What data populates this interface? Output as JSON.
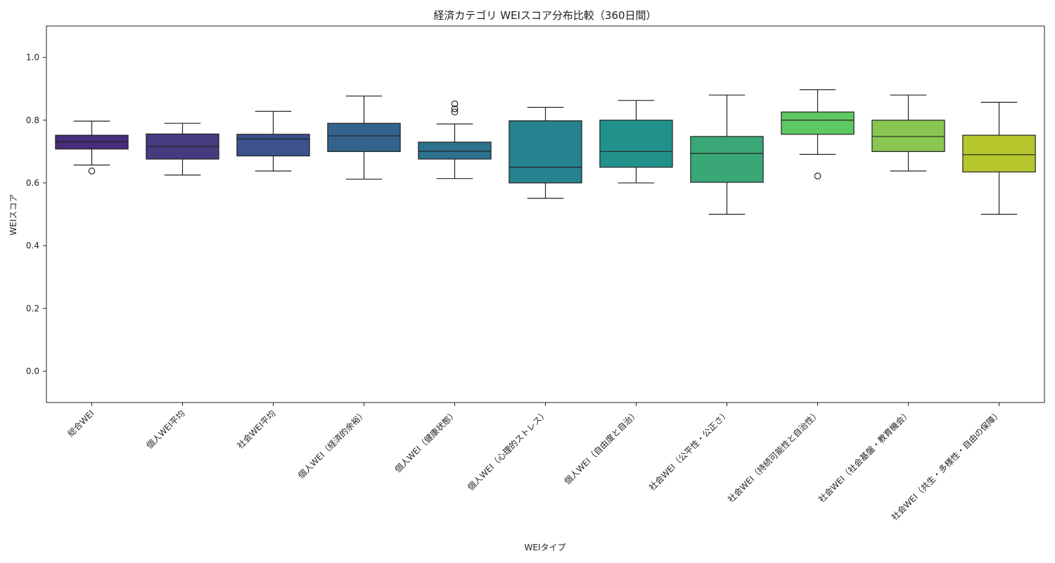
{
  "chart_data": {
    "type": "box",
    "title": "経済カテゴリ WEIスコア分布比較（360日間）",
    "xlabel": "WEIタイプ",
    "ylabel": "WEIスコア",
    "ylim": [
      -0.1,
      1.1
    ],
    "yticks": [
      0.0,
      0.2,
      0.4,
      0.6,
      0.8,
      1.0
    ],
    "ytick_labels": [
      "0.0",
      "0.2",
      "0.4",
      "0.6",
      "0.8",
      "1.0"
    ],
    "grid": false,
    "categories": [
      "総合WEI",
      "個人WEI平均",
      "社会WEI平均",
      "個人WEI（経済的余裕）",
      "個人WEI（健康状態）",
      "個人WEI（心理的ストレス）",
      "個人WEI（自由度と自治）",
      "社会WEI（公平性・公正さ）",
      "社会WEI（持続可能性と自治性）",
      "社会WEI（社会基盤・教育機会）",
      "社会WEI（共生・多様性・自由の保障）"
    ],
    "boxes": [
      {
        "whisker_low": 0.657,
        "q1": 0.708,
        "median": 0.731,
        "q3": 0.752,
        "whisker_high": 0.797,
        "outliers": [
          0.638
        ],
        "color": "#472d7b"
      },
      {
        "whisker_low": 0.625,
        "q1": 0.676,
        "median": 0.716,
        "q3": 0.756,
        "whisker_high": 0.79,
        "outliers": [],
        "color": "#463b7e"
      },
      {
        "whisker_low": 0.638,
        "q1": 0.686,
        "median": 0.74,
        "q3": 0.755,
        "whisker_high": 0.828,
        "outliers": [],
        "color": "#3b528b"
      },
      {
        "whisker_low": 0.612,
        "q1": 0.7,
        "median": 0.75,
        "q3": 0.79,
        "whisker_high": 0.877,
        "outliers": [],
        "color": "#33638d"
      },
      {
        "whisker_low": 0.614,
        "q1": 0.676,
        "median": 0.701,
        "q3": 0.73,
        "whisker_high": 0.788,
        "outliers": [
          0.826,
          0.836,
          0.852
        ],
        "color": "#2c728e"
      },
      {
        "whisker_low": 0.551,
        "q1": 0.6,
        "median": 0.65,
        "q3": 0.798,
        "whisker_high": 0.841,
        "outliers": [],
        "color": "#26828e"
      },
      {
        "whisker_low": 0.6,
        "q1": 0.65,
        "median": 0.7,
        "q3": 0.8,
        "whisker_high": 0.863,
        "outliers": [],
        "color": "#21918c"
      },
      {
        "whisker_low": 0.5,
        "q1": 0.602,
        "median": 0.694,
        "q3": 0.748,
        "whisker_high": 0.88,
        "outliers": [],
        "color": "#3aa776"
      },
      {
        "whisker_low": 0.691,
        "q1": 0.755,
        "median": 0.8,
        "q3": 0.826,
        "whisker_high": 0.897,
        "outliers": [
          0.622
        ],
        "color": "#5ec962"
      },
      {
        "whisker_low": 0.638,
        "q1": 0.7,
        "median": 0.748,
        "q3": 0.8,
        "whisker_high": 0.88,
        "outliers": [],
        "color": "#8ac652"
      },
      {
        "whisker_low": 0.5,
        "q1": 0.635,
        "median": 0.69,
        "q3": 0.752,
        "whisker_high": 0.857,
        "outliers": [],
        "color": "#b5c72d"
      }
    ]
  }
}
